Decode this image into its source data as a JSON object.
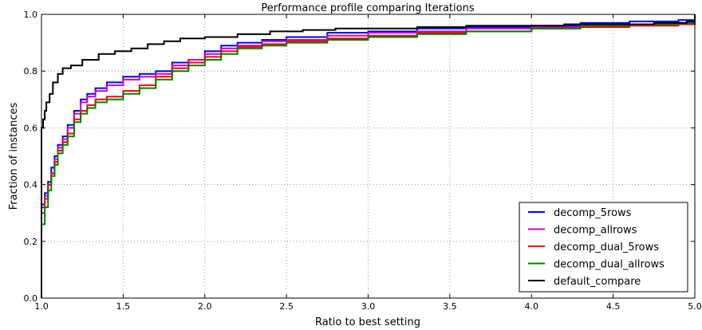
{
  "chart_data": {
    "type": "line",
    "step": true,
    "title": "Performance profile comparing Iterations",
    "xlabel": "Ratio to best setting",
    "ylabel": "Fraction of instances",
    "xlim": [
      1.0,
      5.0
    ],
    "ylim": [
      0.0,
      1.0
    ],
    "xticks": [
      "1.0",
      "1.5",
      "2.0",
      "2.5",
      "3.0",
      "3.5",
      "4.0",
      "4.5",
      "5.0"
    ],
    "yticks": [
      "0.0",
      "0.2",
      "0.4",
      "0.6",
      "0.8",
      "1.0"
    ],
    "grid": true,
    "legend_position": "lower-right",
    "series": [
      {
        "name": "decomp_5rows",
        "color": "#0000ff",
        "points": [
          [
            1.0,
            0.33
          ],
          [
            1.02,
            0.37
          ],
          [
            1.04,
            0.41
          ],
          [
            1.06,
            0.46
          ],
          [
            1.08,
            0.5
          ],
          [
            1.1,
            0.54
          ],
          [
            1.13,
            0.57
          ],
          [
            1.16,
            0.61
          ],
          [
            1.2,
            0.66
          ],
          [
            1.24,
            0.7
          ],
          [
            1.28,
            0.72
          ],
          [
            1.33,
            0.74
          ],
          [
            1.4,
            0.76
          ],
          [
            1.5,
            0.78
          ],
          [
            1.6,
            0.79
          ],
          [
            1.7,
            0.8
          ],
          [
            1.8,
            0.83
          ],
          [
            1.9,
            0.84
          ],
          [
            2.0,
            0.87
          ],
          [
            2.1,
            0.89
          ],
          [
            2.2,
            0.9
          ],
          [
            2.35,
            0.91
          ],
          [
            2.5,
            0.92
          ],
          [
            2.75,
            0.935
          ],
          [
            3.0,
            0.94
          ],
          [
            3.3,
            0.95
          ],
          [
            3.6,
            0.955
          ],
          [
            4.0,
            0.96
          ],
          [
            4.3,
            0.97
          ],
          [
            4.6,
            0.975
          ],
          [
            4.9,
            0.98
          ],
          [
            5.0,
            0.985
          ]
        ]
      },
      {
        "name": "decomp_allrows",
        "color": "#cc00cc",
        "points": [
          [
            1.0,
            0.32
          ],
          [
            1.02,
            0.36
          ],
          [
            1.04,
            0.4
          ],
          [
            1.06,
            0.44
          ],
          [
            1.08,
            0.49
          ],
          [
            1.1,
            0.53
          ],
          [
            1.13,
            0.56
          ],
          [
            1.16,
            0.6
          ],
          [
            1.2,
            0.65
          ],
          [
            1.24,
            0.69
          ],
          [
            1.28,
            0.71
          ],
          [
            1.33,
            0.73
          ],
          [
            1.4,
            0.75
          ],
          [
            1.5,
            0.77
          ],
          [
            1.6,
            0.78
          ],
          [
            1.7,
            0.79
          ],
          [
            1.8,
            0.82
          ],
          [
            1.9,
            0.84
          ],
          [
            2.0,
            0.86
          ],
          [
            2.1,
            0.88
          ],
          [
            2.2,
            0.89
          ],
          [
            2.35,
            0.905
          ],
          [
            2.5,
            0.91
          ],
          [
            2.75,
            0.925
          ],
          [
            3.0,
            0.935
          ],
          [
            3.3,
            0.94
          ],
          [
            3.6,
            0.95
          ],
          [
            4.0,
            0.955
          ],
          [
            4.3,
            0.96
          ],
          [
            4.6,
            0.965
          ],
          [
            4.9,
            0.97
          ],
          [
            5.0,
            0.975
          ]
        ]
      },
      {
        "name": "decomp_dual_5rows",
        "color": "#ff0000",
        "points": [
          [
            1.0,
            0.3
          ],
          [
            1.02,
            0.35
          ],
          [
            1.04,
            0.4
          ],
          [
            1.06,
            0.44
          ],
          [
            1.08,
            0.48
          ],
          [
            1.1,
            0.52
          ],
          [
            1.13,
            0.55
          ],
          [
            1.16,
            0.58
          ],
          [
            1.2,
            0.63
          ],
          [
            1.24,
            0.66
          ],
          [
            1.28,
            0.68
          ],
          [
            1.33,
            0.7
          ],
          [
            1.4,
            0.71
          ],
          [
            1.5,
            0.73
          ],
          [
            1.6,
            0.75
          ],
          [
            1.7,
            0.78
          ],
          [
            1.8,
            0.81
          ],
          [
            1.9,
            0.83
          ],
          [
            2.0,
            0.85
          ],
          [
            2.1,
            0.87
          ],
          [
            2.2,
            0.885
          ],
          [
            2.35,
            0.895
          ],
          [
            2.5,
            0.905
          ],
          [
            2.75,
            0.915
          ],
          [
            3.0,
            0.925
          ],
          [
            3.3,
            0.935
          ],
          [
            3.6,
            0.94
          ],
          [
            4.0,
            0.95
          ],
          [
            4.3,
            0.955
          ],
          [
            4.6,
            0.96
          ],
          [
            4.9,
            0.965
          ],
          [
            5.0,
            0.97
          ]
        ]
      },
      {
        "name": "decomp_dual_allrows",
        "color": "#008000",
        "points": [
          [
            1.0,
            0.26
          ],
          [
            1.02,
            0.32
          ],
          [
            1.04,
            0.38
          ],
          [
            1.06,
            0.43
          ],
          [
            1.08,
            0.47
          ],
          [
            1.1,
            0.51
          ],
          [
            1.13,
            0.54
          ],
          [
            1.16,
            0.57
          ],
          [
            1.2,
            0.62
          ],
          [
            1.24,
            0.65
          ],
          [
            1.28,
            0.67
          ],
          [
            1.33,
            0.69
          ],
          [
            1.4,
            0.7
          ],
          [
            1.5,
            0.72
          ],
          [
            1.6,
            0.74
          ],
          [
            1.7,
            0.77
          ],
          [
            1.8,
            0.8
          ],
          [
            1.9,
            0.82
          ],
          [
            2.0,
            0.84
          ],
          [
            2.1,
            0.86
          ],
          [
            2.2,
            0.88
          ],
          [
            2.35,
            0.89
          ],
          [
            2.5,
            0.9
          ],
          [
            2.75,
            0.91
          ],
          [
            3.0,
            0.92
          ],
          [
            3.3,
            0.93
          ],
          [
            3.6,
            0.94
          ],
          [
            4.0,
            0.95
          ],
          [
            4.3,
            0.96
          ],
          [
            4.6,
            0.965
          ],
          [
            4.9,
            0.97
          ],
          [
            5.0,
            0.975
          ]
        ]
      },
      {
        "name": "default_compare",
        "color": "#000000",
        "points": [
          [
            1.0,
            0.0
          ],
          [
            1.0,
            0.6
          ],
          [
            1.01,
            0.63
          ],
          [
            1.02,
            0.66
          ],
          [
            1.03,
            0.69
          ],
          [
            1.05,
            0.72
          ],
          [
            1.07,
            0.76
          ],
          [
            1.1,
            0.79
          ],
          [
            1.13,
            0.81
          ],
          [
            1.18,
            0.82
          ],
          [
            1.25,
            0.84
          ],
          [
            1.35,
            0.86
          ],
          [
            1.45,
            0.87
          ],
          [
            1.55,
            0.88
          ],
          [
            1.65,
            0.895
          ],
          [
            1.75,
            0.905
          ],
          [
            1.85,
            0.915
          ],
          [
            2.0,
            0.92
          ],
          [
            2.2,
            0.93
          ],
          [
            2.4,
            0.94
          ],
          [
            2.6,
            0.945
          ],
          [
            2.8,
            0.95
          ],
          [
            3.0,
            0.95
          ],
          [
            3.3,
            0.955
          ],
          [
            3.6,
            0.96
          ],
          [
            4.0,
            0.96
          ],
          [
            4.2,
            0.965
          ],
          [
            4.5,
            0.965
          ],
          [
            4.75,
            0.97
          ],
          [
            4.95,
            0.975
          ],
          [
            5.0,
            1.0
          ]
        ]
      }
    ]
  }
}
